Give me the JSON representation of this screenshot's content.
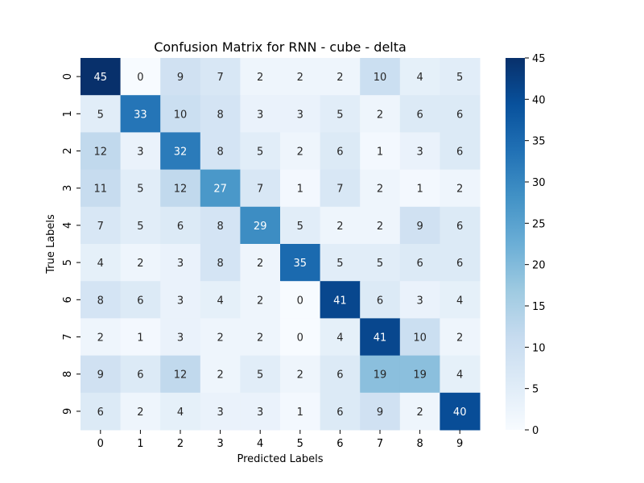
{
  "chart_data": {
    "type": "heatmap",
    "title": "Confusion Matrix for RNN - cube - delta",
    "xlabel": "Predicted Labels",
    "ylabel": "True Labels",
    "x_categories": [
      "0",
      "1",
      "2",
      "3",
      "4",
      "5",
      "6",
      "7",
      "8",
      "9"
    ],
    "y_categories": [
      "0",
      "1",
      "2",
      "3",
      "4",
      "5",
      "6",
      "7",
      "8",
      "9"
    ],
    "values": [
      [
        45,
        0,
        9,
        7,
        2,
        2,
        2,
        10,
        4,
        5
      ],
      [
        5,
        33,
        10,
        8,
        3,
        3,
        5,
        2,
        6,
        6
      ],
      [
        12,
        3,
        32,
        8,
        5,
        2,
        6,
        1,
        3,
        6
      ],
      [
        11,
        5,
        12,
        27,
        7,
        1,
        7,
        2,
        1,
        2
      ],
      [
        7,
        5,
        6,
        8,
        29,
        5,
        2,
        2,
        9,
        6
      ],
      [
        4,
        2,
        3,
        8,
        2,
        35,
        5,
        5,
        6,
        6
      ],
      [
        8,
        6,
        3,
        4,
        2,
        0,
        41,
        6,
        3,
        4
      ],
      [
        2,
        1,
        3,
        2,
        2,
        0,
        4,
        41,
        10,
        2
      ],
      [
        9,
        6,
        12,
        2,
        5,
        2,
        6,
        19,
        19,
        4
      ],
      [
        6,
        2,
        4,
        3,
        3,
        1,
        6,
        9,
        2,
        40
      ]
    ],
    "value_range": [
      0,
      45
    ],
    "colormap": "Blues",
    "colors": {
      "low": "#f7fbff",
      "high": "#08306b"
    },
    "colorbar": {
      "ticks": [
        0,
        5,
        10,
        15,
        20,
        25,
        30,
        35,
        40,
        45
      ],
      "position": "right"
    },
    "annotations": "cell values shown"
  }
}
